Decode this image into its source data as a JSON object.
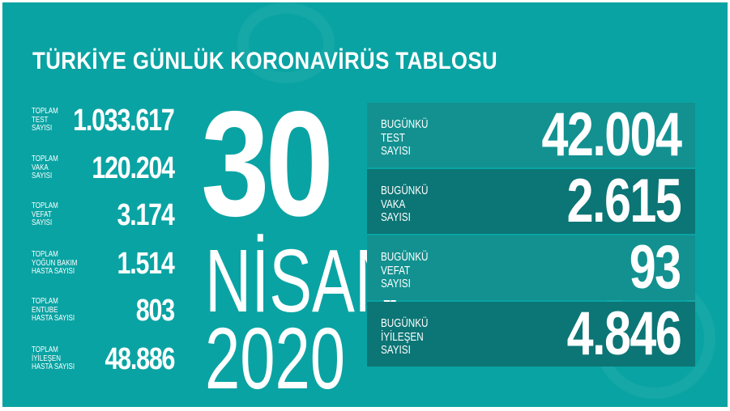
{
  "title": "TÜRKİYE GÜNLÜK KORONAVİRÜS TABLOSU",
  "colors": {
    "background": "#0aa3a3",
    "box_light": "#129190",
    "box_dark": "#0c7575",
    "text": "#ffffff"
  },
  "totals": [
    {
      "label": "TOPLAM\nTEST\nSAYISI",
      "value": "1.033.617"
    },
    {
      "label": "TOPLAM\nVAKA\nSAYISI",
      "value": "120.204"
    },
    {
      "label": "TOPLAM\nVEFAT\nSAYISI",
      "value": "3.174"
    },
    {
      "label": "TOPLAM\nYOĞUN BAKIM\nHASTA SAYISI",
      "value": "1.514"
    },
    {
      "label": "TOPLAM\nENTUBE\nHASTA SAYISI",
      "value": "803"
    },
    {
      "label": "TOPLAM\nİYİLEŞEN\nHASTA SAYISI",
      "value": "48.886"
    }
  ],
  "date": {
    "day": "30",
    "month": "NİSAN",
    "year": "2020"
  },
  "daily": [
    {
      "label": "BUGÜNKÜ\nTEST\nSAYISI",
      "value": "42.004"
    },
    {
      "label": "BUGÜNKÜ\nVAKA\nSAYISI",
      "value": "2.615"
    },
    {
      "label": "BUGÜNKÜ\nVEFAT\nSAYISI",
      "value": "93"
    },
    {
      "label": "BUGÜNKÜ\nİYİLEŞEN\nSAYISI",
      "value": "4.846"
    }
  ]
}
